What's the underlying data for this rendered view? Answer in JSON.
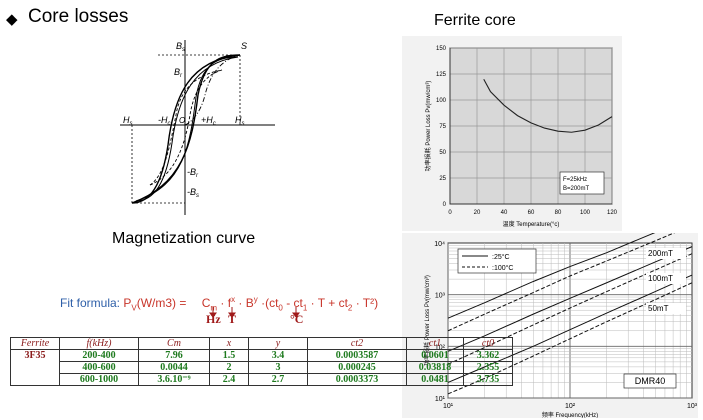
{
  "header": {
    "bullet_icon": "diamond-icon",
    "title": "Core losses"
  },
  "ferrite_core": {
    "title": "Ferrite core",
    "chart_data": {
      "type": "line",
      "ylabel_cn": "功率损耗",
      "ylabel": "Power Loss Pv(mw/cm³)",
      "xlabel_cn": "温度",
      "xlabel": "Temperature(°c)",
      "x_ticks": [
        "0",
        "20",
        "40",
        "60",
        "80",
        "100",
        "120"
      ],
      "y_ticks": [
        "0",
        "25",
        "50",
        "75",
        "100",
        "125",
        "150"
      ],
      "xlim": [
        0,
        120
      ],
      "ylim": [
        0,
        150
      ],
      "legend": [
        "F=25kHz",
        "B=200mT"
      ],
      "series": [
        {
          "x": [
            25,
            30,
            40,
            50,
            60,
            70,
            80,
            90,
            100,
            110,
            120
          ],
          "values": [
            120,
            108,
            95,
            85,
            78,
            73,
            70,
            69,
            71,
            76,
            84
          ]
        }
      ]
    }
  },
  "hysteresis": {
    "labels": [
      "Bs",
      "Br",
      "S",
      "Hs",
      "-Hc",
      "O",
      "+Hc",
      "Hs",
      "-Br",
      "-Bs"
    ],
    "caption": "Magnetization curve"
  },
  "dmr40": {
    "chart_data": {
      "type": "line",
      "ylabel_cn": "功率损耗",
      "ylabel": "Power Loss Pv(mw/cm³)",
      "xlabel_cn": "频率",
      "xlabel": "Frequency(kHz)",
      "scale": "log-log",
      "x_ticks": [
        "10¹",
        "10²",
        "10³"
      ],
      "y_ticks": [
        "10¹",
        "10²",
        "10³",
        "10⁴"
      ],
      "legend": [
        ":25°C",
        ":100°C"
      ],
      "curve_labels": [
        "200mT",
        "100mT",
        "50mT"
      ],
      "model_label": "DMR40",
      "series": [
        {
          "label": "200mT",
          "x": [
            10,
            20,
            50,
            100,
            200,
            500,
            1000
          ],
          "solid": [
            350,
            700,
            1800,
            3500,
            6500,
            16000,
            30000
          ],
          "dashed": [
            200,
            420,
            1100,
            2300,
            4500,
            11000,
            22000
          ]
        },
        {
          "label": "100mT",
          "x": [
            10,
            20,
            50,
            100,
            200,
            500,
            1000
          ],
          "solid": [
            80,
            160,
            420,
            850,
            1700,
            4300,
            8500
          ],
          "dashed": [
            45,
            95,
            260,
            550,
            1150,
            3000,
            6200
          ]
        },
        {
          "label": "50mT",
          "x": [
            10,
            20,
            50,
            100,
            200,
            500,
            1000
          ],
          "solid": [
            20,
            40,
            100,
            210,
            440,
            1150,
            2400
          ],
          "dashed": [
            12,
            24,
            65,
            140,
            300,
            800,
            1700
          ]
        }
      ]
    }
  },
  "formula": {
    "prefix": "Fit formula: ",
    "pv": "P",
    "pv_sub": "V",
    "pv_unit": "(W/m3) =",
    "expr": "C",
    "expr_sub": "m",
    "expr_rest": " · f",
    "fx": "x",
    "b": " · B",
    "by": "y",
    "paren": " ·(ct",
    "paren0": "0",
    "paren_rest": " - ct",
    "p1": "1",
    "paren_rest2": " · T + ct",
    "p2": "2",
    "paren_end": " · T²)",
    "unit_hz": "Hz",
    "unit_t": "T",
    "unit_c": "°C"
  },
  "table": {
    "headers": [
      "Ferrite",
      "f(kHz)",
      "Cm",
      "x",
      "y",
      "ct2",
      "ct1",
      "ct0"
    ],
    "ferrite": "3F35",
    "rows": [
      [
        "200-400",
        "7.96",
        "1.5",
        "3.4",
        "0.0003587",
        "0.0601",
        "3.362"
      ],
      [
        "400-600",
        "0.0044",
        "2",
        "3",
        "0.000245",
        "0.03818",
        "2.355"
      ],
      [
        "600-1000",
        "3.6.10⁻⁹",
        "2.4",
        "2.7",
        "0.0003373",
        "0.0481",
        "3.735"
      ]
    ]
  }
}
